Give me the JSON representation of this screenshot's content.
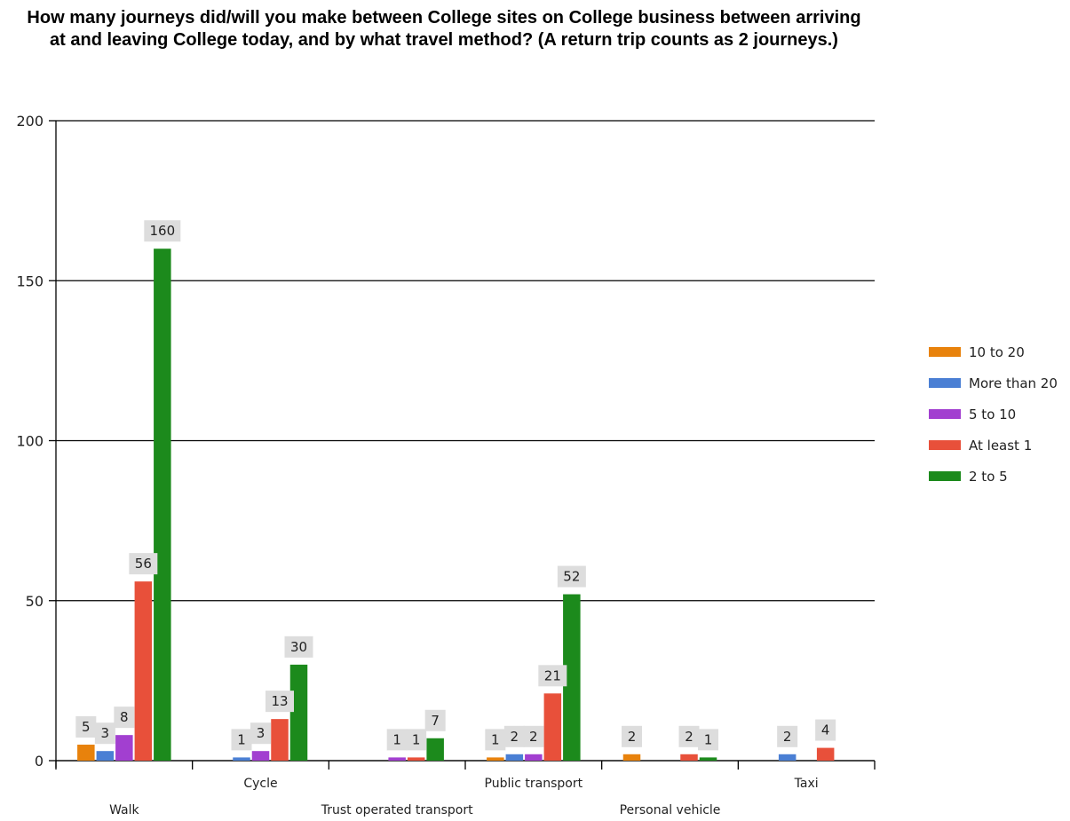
{
  "chart_data": {
    "type": "bar",
    "title": "How many journeys did/will you make between College sites on College business between arriving at and leaving College today, and by what travel method?  (A return trip counts as 2 journeys.)",
    "xlabel": "",
    "ylabel": "",
    "ylim": [
      0,
      200
    ],
    "yticks": [
      0,
      50,
      100,
      150,
      200
    ],
    "grid": true,
    "legend_position": "right",
    "categories": [
      "Walk",
      "Cycle",
      "Trust operated transport",
      "Public transport",
      "Personal vehicle",
      "Taxi"
    ],
    "series": [
      {
        "name": "10 to 20",
        "color": "#e8820c",
        "values": [
          5,
          null,
          null,
          1,
          2,
          null
        ]
      },
      {
        "name": "More than 20",
        "color": "#4a7fd4",
        "values": [
          3,
          1,
          null,
          2,
          null,
          2
        ]
      },
      {
        "name": "5 to 10",
        "color": "#a23fd0",
        "values": [
          8,
          3,
          1,
          2,
          null,
          null
        ]
      },
      {
        "name": "At least 1",
        "color": "#e8503a",
        "values": [
          56,
          13,
          1,
          21,
          2,
          4
        ]
      },
      {
        "name": "2 to 5",
        "color": "#1c8a1c",
        "values": [
          160,
          30,
          7,
          52,
          1,
          null
        ]
      }
    ]
  }
}
